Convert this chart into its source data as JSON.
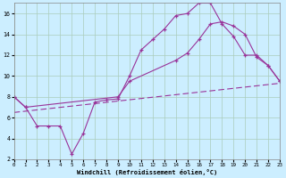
{
  "xlabel": "Windchill (Refroidissement éolien,°C)",
  "bg_color": "#cceeff",
  "grid_color": "#aaccbb",
  "line_color": "#993399",
  "xlim": [
    0,
    23
  ],
  "ylim": [
    2,
    17
  ],
  "xticks": [
    0,
    1,
    2,
    3,
    4,
    5,
    6,
    7,
    8,
    9,
    10,
    11,
    12,
    13,
    14,
    15,
    16,
    17,
    18,
    19,
    20,
    21,
    22,
    23
  ],
  "yticks": [
    2,
    4,
    6,
    8,
    10,
    12,
    14,
    16
  ],
  "line1_x": [
    0,
    1,
    2,
    3,
    4,
    5,
    6,
    7,
    8,
    9,
    10,
    11,
    12,
    13,
    14,
    15,
    16,
    17,
    18,
    19,
    20,
    21,
    22,
    23
  ],
  "line1_y": [
    8.0,
    7.0,
    5.2,
    5.2,
    5.2,
    2.5,
    4.5,
    7.5,
    7.7,
    7.8,
    10.0,
    12.5,
    13.5,
    14.5,
    15.8,
    16.0,
    17.0,
    17.0,
    15.0,
    13.8,
    12.0,
    12.0,
    11.0,
    9.5
  ],
  "line2_x": [
    0,
    1,
    9,
    10,
    14,
    15,
    16,
    17,
    18,
    19,
    20,
    21,
    22,
    23
  ],
  "line2_y": [
    8.0,
    7.0,
    8.0,
    9.5,
    11.5,
    12.2,
    13.5,
    15.0,
    15.2,
    14.8,
    14.0,
    11.8,
    11.0,
    9.5
  ],
  "line3_x": [
    0,
    23
  ],
  "line3_y": [
    6.5,
    9.3
  ]
}
